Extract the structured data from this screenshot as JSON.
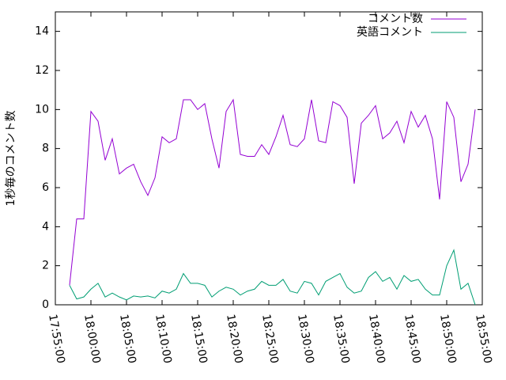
{
  "chart_data": {
    "type": "line",
    "ylabel": "1秒毎のコメント数",
    "x": [
      "17:57:00",
      "17:58:00",
      "17:59:00",
      "18:00:00",
      "18:01:00",
      "18:02:00",
      "18:03:00",
      "18:04:00",
      "18:05:00",
      "18:06:00",
      "18:07:00",
      "18:08:00",
      "18:09:00",
      "18:10:00",
      "18:11:00",
      "18:12:00",
      "18:13:00",
      "18:14:00",
      "18:15:00",
      "18:16:00",
      "18:17:00",
      "18:18:00",
      "18:19:00",
      "18:20:00",
      "18:21:00",
      "18:22:00",
      "18:23:00",
      "18:24:00",
      "18:25:00",
      "18:26:00",
      "18:27:00",
      "18:28:00",
      "18:29:00",
      "18:30:00",
      "18:31:00",
      "18:32:00",
      "18:33:00",
      "18:34:00",
      "18:35:00",
      "18:36:00",
      "18:37:00",
      "18:38:00",
      "18:39:00",
      "18:40:00",
      "18:41:00",
      "18:42:00",
      "18:43:00",
      "18:44:00",
      "18:45:00",
      "18:46:00",
      "18:47:00",
      "18:48:00",
      "18:49:00",
      "18:50:00",
      "18:51:00",
      "18:52:00",
      "18:53:00",
      "18:54:00"
    ],
    "series": [
      {
        "name": "コメント数",
        "color": "#9400d3",
        "values": [
          1.0,
          4.4,
          4.4,
          9.9,
          9.4,
          7.4,
          8.5,
          6.7,
          7.0,
          7.2,
          6.3,
          5.6,
          6.5,
          8.6,
          8.3,
          8.5,
          10.5,
          10.5,
          10.0,
          10.3,
          8.5,
          7.0,
          9.9,
          10.5,
          7.7,
          7.6,
          7.6,
          8.2,
          7.7,
          8.6,
          9.7,
          8.2,
          8.1,
          8.5,
          10.5,
          8.4,
          8.3,
          10.4,
          10.2,
          9.6,
          6.2,
          9.3,
          9.7,
          10.2,
          8.5,
          8.8,
          9.4,
          8.3,
          9.9,
          9.1,
          9.7,
          8.5,
          5.4,
          10.4,
          9.6,
          6.3,
          7.2,
          10.0
        ]
      },
      {
        "name": "英語コメント",
        "color": "#009e73",
        "values": [
          1.0,
          0.3,
          0.4,
          0.8,
          1.1,
          0.4,
          0.6,
          0.4,
          0.25,
          0.45,
          0.4,
          0.45,
          0.35,
          0.7,
          0.6,
          0.8,
          1.6,
          1.1,
          1.1,
          1.0,
          0.4,
          0.7,
          0.9,
          0.8,
          0.5,
          0.7,
          0.8,
          1.2,
          1.0,
          1.0,
          1.3,
          0.7,
          0.6,
          1.2,
          1.1,
          0.5,
          1.2,
          1.4,
          1.6,
          0.9,
          0.6,
          0.7,
          1.4,
          1.7,
          1.2,
          1.4,
          0.8,
          1.5,
          1.2,
          1.3,
          0.8,
          0.5,
          0.5,
          2.0,
          2.8,
          0.8,
          1.1,
          0.0
        ]
      }
    ],
    "xlim": [
      "17:55:00",
      "18:55:00"
    ],
    "xticks": [
      "17:55:00",
      "18:00:00",
      "18:05:00",
      "18:10:00",
      "18:15:00",
      "18:20:00",
      "18:25:00",
      "18:30:00",
      "18:35:00",
      "18:40:00",
      "18:45:00",
      "18:50:00",
      "18:55:00"
    ],
    "ylim": [
      0,
      15
    ],
    "yticks": [
      0,
      2,
      4,
      6,
      8,
      10,
      12,
      14
    ],
    "legend": "top-right"
  }
}
